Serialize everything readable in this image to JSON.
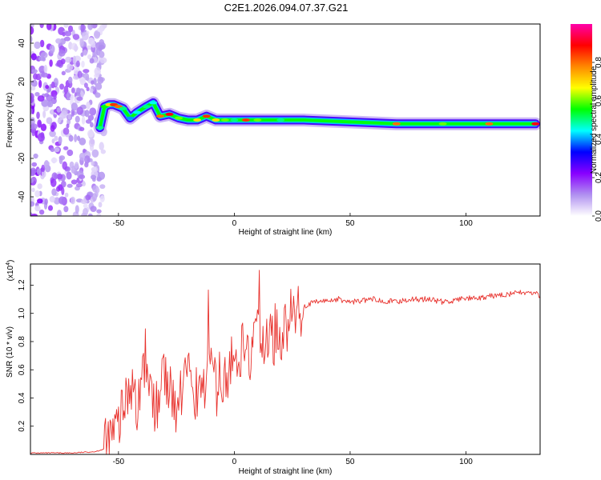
{
  "title": "C2E1.2026.094.07.37.G21",
  "chart_data": [
    {
      "type": "heatmap",
      "title": "C2E1.2026.094.07.37.G21",
      "xlabel": "Height of straight line (km)",
      "ylabel": "Frequency (Hz)",
      "xlim": [
        -88,
        132
      ],
      "ylim": [
        -50,
        50
      ],
      "xticks": [
        "-50",
        "0",
        "50",
        "100"
      ],
      "yticks": [
        "40",
        "20",
        "0",
        "-20",
        "-40"
      ],
      "colorbar": {
        "label": "Normalized spectral amplitude",
        "range": [
          0,
          1
        ],
        "ticks": [
          "0.0",
          "0.2",
          "0.4",
          "0.6",
          "0.8"
        ],
        "colors": [
          "#ffffff",
          "#b090f0",
          "#8800ff",
          "#0000ff",
          "#00ffff",
          "#00ff00",
          "#ffff00",
          "#ff8800",
          "#ff0000",
          "#ff00aa"
        ]
      },
      "ridge": {
        "height_km": [
          -58,
          -56,
          -54,
          -52,
          -50,
          -48,
          -45,
          -42,
          -38,
          -35,
          -32,
          -28,
          -24,
          -20,
          -16,
          -12,
          -8,
          -4,
          0,
          5,
          10,
          20,
          30,
          50,
          70,
          90,
          110,
          130
        ],
        "frequency_hz": [
          -4,
          7,
          8,
          8,
          7,
          6,
          1,
          4,
          7,
          9,
          2,
          3,
          1,
          0,
          0,
          2,
          0,
          0,
          0,
          0,
          0,
          0,
          0,
          -1,
          -2,
          -2,
          -2,
          -2
        ],
        "amplitude": [
          0.5,
          0.55,
          0.7,
          0.85,
          0.8,
          0.5,
          0.4,
          0.45,
          0.5,
          0.45,
          0.8,
          0.9,
          0.6,
          0.55,
          0.7,
          0.85,
          0.7,
          0.6,
          0.5,
          0.85,
          0.6,
          0.5,
          0.55,
          0.55,
          0.8,
          0.6,
          0.8,
          0.9
        ]
      }
    },
    {
      "type": "line",
      "xlabel": "Height of straight line (km)",
      "ylabel": "SNR (10 * v/v)",
      "multiplier": "(x10",
      "multiplier_exp": "4",
      "multiplier_close": ")",
      "xlim": [
        -88,
        132
      ],
      "ylim": [
        0,
        1.35
      ],
      "xticks": [
        "-50",
        "0",
        "50",
        "100"
      ],
      "yticks": [
        "0.2",
        "0.4",
        "0.6",
        "0.8",
        "1.0",
        "1.2"
      ],
      "color": "#e8322d",
      "series": [
        {
          "name": "SNR",
          "x": [
            -88,
            -70,
            -60,
            -56,
            -54,
            -52,
            -50,
            -48,
            -46,
            -44,
            -42,
            -40,
            -38,
            -36,
            -34,
            -32,
            -30,
            -28,
            -26,
            -24,
            -22,
            -20,
            -18,
            -16,
            -14,
            -12,
            -10,
            -8,
            -6,
            -4,
            -2,
            0,
            2,
            4,
            6,
            8,
            10,
            12,
            14,
            16,
            18,
            20,
            22,
            24,
            26,
            28,
            30,
            35,
            40,
            45,
            50,
            55,
            60,
            65,
            70,
            75,
            80,
            85,
            90,
            95,
            100,
            105,
            110,
            115,
            120,
            125,
            130,
            132
          ],
          "y": [
            0.01,
            0.01,
            0.02,
            0.04,
            0.08,
            0.15,
            0.2,
            0.3,
            0.45,
            0.55,
            0.35,
            0.6,
            0.5,
            0.35,
            0.3,
            0.4,
            0.55,
            0.45,
            0.35,
            0.3,
            0.5,
            0.6,
            0.3,
            0.35,
            0.4,
            0.5,
            0.55,
            0.45,
            0.6,
            0.55,
            0.65,
            0.6,
            0.7,
            0.75,
            0.65,
            0.72,
            0.85,
            0.8,
            0.78,
            0.8,
            0.88,
            0.85,
            0.9,
            0.95,
            1.0,
            1.02,
            1.05,
            1.08,
            1.09,
            1.1,
            1.08,
            1.09,
            1.1,
            1.09,
            1.08,
            1.1,
            1.1,
            1.1,
            1.08,
            1.09,
            1.11,
            1.1,
            1.12,
            1.13,
            1.14,
            1.15,
            1.14,
            1.12
          ]
        }
      ]
    }
  ]
}
